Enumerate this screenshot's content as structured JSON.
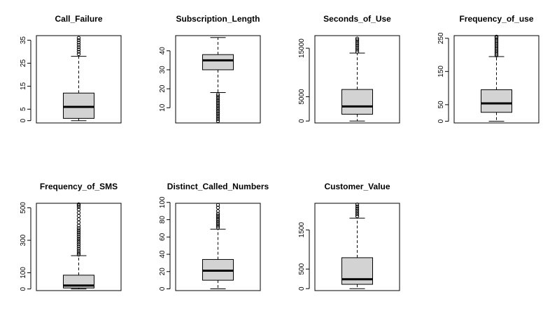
{
  "chart_data": [
    {
      "type": "boxplot",
      "title": "Call_Failure",
      "ylim": [
        -1,
        37
      ],
      "yticks": [
        0,
        5,
        15,
        25,
        35
      ],
      "box": {
        "min": 0,
        "q1": 1,
        "median": 6,
        "q3": 12,
        "max": 28
      },
      "outliers": [
        29,
        30,
        31,
        32,
        33,
        34,
        35,
        36
      ]
    },
    {
      "type": "boxplot",
      "title": "Subscription_Length",
      "ylim": [
        2,
        48
      ],
      "yticks": [
        10,
        20,
        30,
        40
      ],
      "box": {
        "min": 18,
        "q1": 30,
        "median": 35,
        "q3": 38,
        "max": 47
      },
      "outliers": [
        3,
        4,
        5,
        6,
        7,
        8,
        9,
        10,
        11,
        12,
        13,
        14,
        15,
        16,
        17
      ]
    },
    {
      "type": "boxplot",
      "title": "Seconds_of_Use",
      "ylim": [
        -400,
        17600
      ],
      "yticks": [
        0,
        5000,
        15000
      ],
      "box": {
        "min": 0,
        "q1": 1400,
        "median": 3000,
        "q3": 6500,
        "max": 14000
      },
      "outliers": [
        14300,
        14700,
        15100,
        15500,
        15900,
        16300,
        16700,
        17000
      ]
    },
    {
      "type": "boxplot",
      "title": "Frequency_of_use",
      "ylim": [
        -5,
        258
      ],
      "yticks": [
        0,
        50,
        150,
        250
      ],
      "box": {
        "min": 0,
        "q1": 27,
        "median": 54,
        "q3": 95,
        "max": 195
      },
      "outliers": [
        198,
        202,
        207,
        212,
        217,
        222,
        227,
        232,
        237,
        242,
        247,
        252,
        255
      ]
    },
    {
      "type": "boxplot",
      "title": "Frequency_of_SMS",
      "ylim": [
        -10,
        528
      ],
      "yticks": [
        0,
        100,
        300,
        500
      ],
      "box": {
        "min": 0,
        "q1": 6,
        "median": 21,
        "q3": 85,
        "max": 205
      },
      "outliers": [
        212,
        222,
        235,
        248,
        262,
        275,
        288,
        300,
        312,
        325,
        338,
        350,
        362,
        375,
        390,
        410,
        430,
        450,
        470,
        490,
        505,
        515,
        522
      ]
    },
    {
      "type": "boxplot",
      "title": "Distinct_Called_Numbers",
      "ylim": [
        -2,
        99
      ],
      "yticks": [
        0,
        20,
        40,
        60,
        80,
        100
      ],
      "box": {
        "min": 0,
        "q1": 10,
        "median": 21,
        "q3": 34,
        "max": 69
      },
      "outliers": [
        71,
        73,
        75,
        77,
        79,
        81,
        83,
        85,
        87,
        90,
        94,
        97
      ]
    },
    {
      "type": "boxplot",
      "title": "Customer_Value",
      "ylim": [
        -50,
        2180
      ],
      "yticks": [
        0,
        500,
        1500
      ],
      "box": {
        "min": 0,
        "q1": 110,
        "median": 240,
        "q3": 790,
        "max": 1800
      },
      "outliers": [
        1850,
        1900,
        1950,
        2000,
        2050,
        2100,
        2150
      ]
    }
  ]
}
